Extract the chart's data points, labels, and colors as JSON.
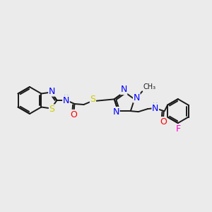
{
  "background_color": "#ebebeb",
  "bond_color": "#1a1a1a",
  "atom_colors": {
    "N": "#0000ff",
    "S": "#cccc00",
    "O": "#ff0000",
    "F": "#ff00cc",
    "H": "#6ab4b4",
    "C": "#1a1a1a"
  },
  "figsize": [
    3.0,
    3.0
  ],
  "dpi": 100,
  "lw": 1.4,
  "fs": 8.0
}
